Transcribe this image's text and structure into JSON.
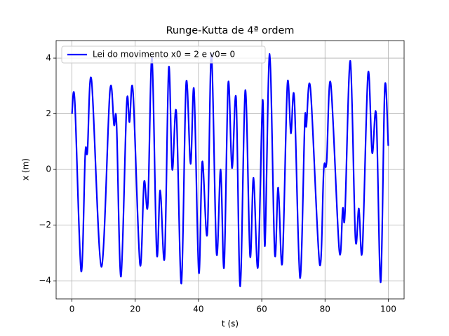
{
  "chart_data": {
    "type": "line",
    "title": "Runge-Kutta de 4ª ordem",
    "xlabel": "t (s)",
    "ylabel": "x (m)",
    "grid": true,
    "legend": "upper left",
    "x": [
      0,
      0.9,
      2.9,
      4.2,
      4.9,
      6.2,
      9.3,
      12,
      13.3,
      14.1,
      15.5,
      17.3,
      18.2,
      19.3,
      21.5,
      22.8,
      24,
      25.3,
      26.8,
      27.9,
      29.3,
      30.6,
      31.7,
      33,
      34.6,
      36.1,
      37.5,
      38.6,
      40.1,
      41.2,
      42.8,
      44.1,
      45.7,
      47,
      48.1,
      49.4,
      50.6,
      51.9,
      53.2,
      54.8,
      56.3,
      57.4,
      58.8,
      60.3,
      61,
      62.5,
      64.1,
      65.2,
      66.5,
      68.1,
      69.2,
      70.3,
      72.1,
      73.6,
      74.1,
      75.4,
      78.3,
      79.6,
      80.5,
      81.8,
      84.5,
      85.6,
      86.3,
      88,
      89.6,
      90.7,
      91.8,
      93.6,
      94.9,
      96.2,
      97.6,
      98.9,
      100
    ],
    "series": [
      {
        "name": "Lei do movimento x0 = 2 e v0= 0",
        "color": "#0000ff",
        "values": [
          2.0,
          2.45,
          -3.65,
          0.55,
          0.65,
          3.2,
          -3.5,
          2.8,
          1.6,
          1.65,
          -3.85,
          2.35,
          1.7,
          2.8,
          -3.4,
          -0.45,
          -1.25,
          4.0,
          -3.0,
          -0.75,
          -3.15,
          3.65,
          0.0,
          2.05,
          -4.1,
          3.1,
          0.2,
          2.85,
          -3.7,
          0.28,
          -2.3,
          4.15,
          -3.0,
          0.0,
          -3.5,
          3.1,
          0.05,
          2.55,
          -4.2,
          2.85,
          -3.1,
          -0.3,
          -3.5,
          2.5,
          -2.75,
          4.15,
          -3.0,
          -0.65,
          -3.35,
          3.05,
          1.3,
          2.55,
          -3.9,
          1.7,
          1.55,
          2.9,
          -3.4,
          0.0,
          0.25,
          3.1,
          -2.9,
          -1.4,
          -1.6,
          3.9,
          -2.45,
          -1.4,
          -2.9,
          3.45,
          0.6,
          1.95,
          -4.05,
          2.95,
          0.85
        ]
      }
    ],
    "xlim": [
      -5,
      105
    ],
    "ylim": [
      -4.65,
      4.63
    ],
    "xticks": [
      0,
      20,
      40,
      60,
      80,
      100
    ],
    "yticks": [
      {
        "value": -4,
        "label": "−4"
      },
      {
        "value": -2,
        "label": "−2"
      },
      0,
      2,
      4
    ]
  }
}
